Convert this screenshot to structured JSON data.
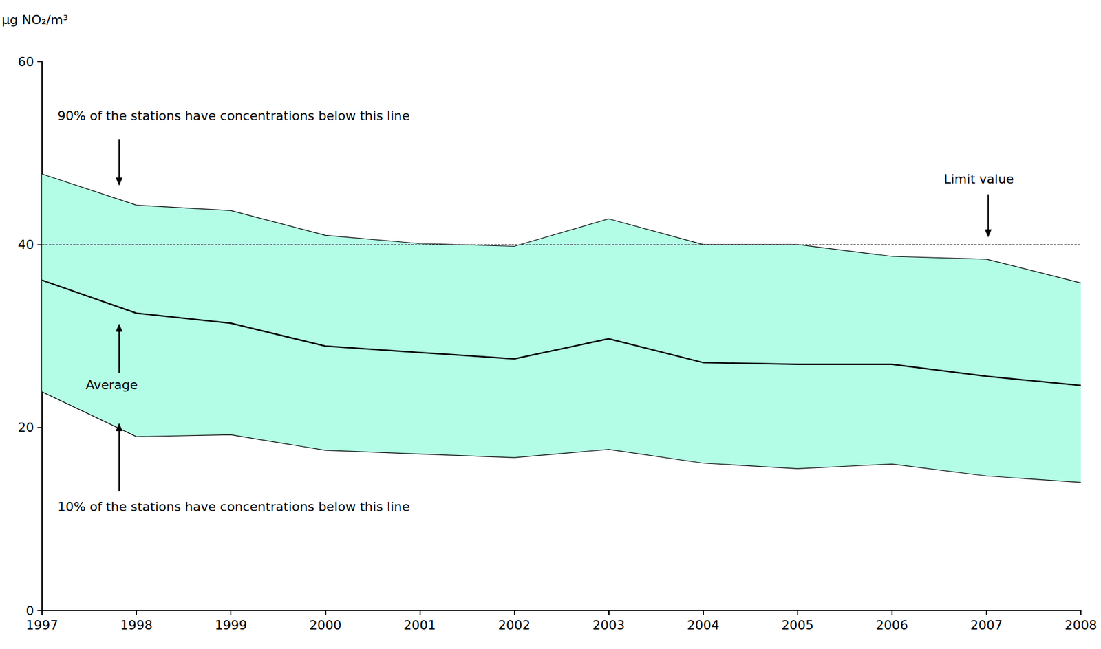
{
  "chart_data": {
    "type": "line",
    "ylabel": "µg NO₂/m³",
    "categories": [
      "1997",
      "1998",
      "1999",
      "2000",
      "2001",
      "2002",
      "2003",
      "2004",
      "2005",
      "2006",
      "2007",
      "2008"
    ],
    "series": [
      {
        "name": "90% of the stations have concentrations below this line",
        "color": "#000000",
        "values": [
          47.7,
          44.3,
          43.7,
          41.0,
          40.1,
          39.8,
          42.8,
          40.0,
          40.0,
          38.7,
          38.4,
          35.8
        ]
      },
      {
        "name": "Average",
        "color": "#000000",
        "values": [
          36.1,
          32.5,
          31.4,
          28.9,
          28.2,
          27.5,
          29.7,
          27.1,
          26.9,
          26.9,
          25.6,
          24.6
        ]
      },
      {
        "name": "10% of the stations have concentrations below this line",
        "color": "#000000",
        "values": [
          23.9,
          19.0,
          19.2,
          17.5,
          17.1,
          16.7,
          17.6,
          16.1,
          15.5,
          16.0,
          14.7,
          14.0
        ]
      }
    ],
    "band_color": "#b3fde6",
    "limit": {
      "label": "Limit value",
      "value": 40,
      "line_style": "dashed"
    },
    "ylim": [
      0,
      60
    ],
    "yticks": [
      0,
      20,
      40,
      60
    ],
    "grid": false
  }
}
